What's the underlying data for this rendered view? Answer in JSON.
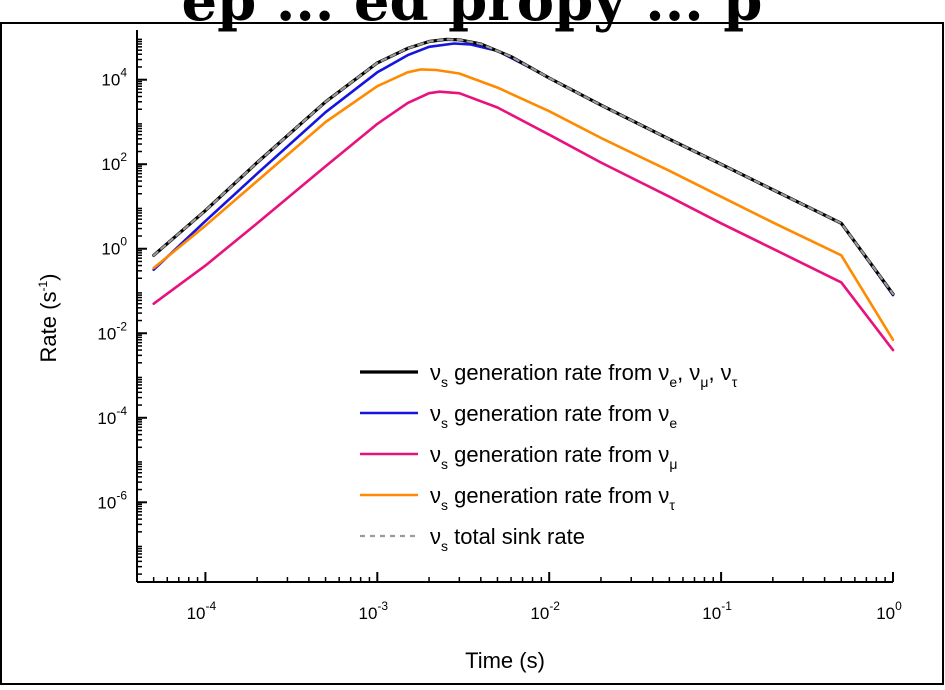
{
  "page": {
    "title_fragment": "ep ... ed propy ... p"
  },
  "chart_data": {
    "type": "line",
    "xscale": "log",
    "yscale": "log",
    "xlabel": "Time (s)",
    "ylabel_main": "Rate (s",
    "ylabel_sup": "-1",
    "ylabel_close": ")",
    "xlim": [
      4e-05,
      1.0
    ],
    "ylim": [
      1.3e-08,
      150000.0
    ],
    "x_ticks": [
      {
        "value": 0.0001,
        "base": "10",
        "exp": "-4"
      },
      {
        "value": 0.001,
        "base": "10",
        "exp": "-3"
      },
      {
        "value": 0.01,
        "base": "10",
        "exp": "-2"
      },
      {
        "value": 0.1,
        "base": "10",
        "exp": "-1"
      },
      {
        "value": 1.0,
        "base": "10",
        "exp": "0"
      }
    ],
    "y_ticks": [
      {
        "value": 1e-06,
        "base": "10",
        "exp": "-6"
      },
      {
        "value": 0.0001,
        "base": "10",
        "exp": "-4"
      },
      {
        "value": 0.01,
        "base": "10",
        "exp": "-2"
      },
      {
        "value": 1.0,
        "base": "10",
        "exp": "0"
      },
      {
        "value": 100.0,
        "base": "10",
        "exp": "2"
      },
      {
        "value": 10000.0,
        "base": "10",
        "exp": "4"
      }
    ],
    "grid": false,
    "legend_position": "bottom-right",
    "series": [
      {
        "key": "total-gen",
        "color": "#000000",
        "dash": "none",
        "width": 3.2,
        "legend": [
          {
            "t": "ν",
            "s": "s"
          },
          {
            "t": " generation rate from ν"
          },
          {
            "t": "",
            "s": "e"
          },
          {
            "t": ", ν"
          },
          {
            "t": "",
            "s": "μ"
          },
          {
            "t": ", ν"
          },
          {
            "t": "",
            "s": "τ"
          }
        ],
        "points": [
          [
            5e-05,
            0.7
          ],
          [
            0.0001,
            8.0
          ],
          [
            0.0002,
            110.0
          ],
          [
            0.0005,
            3000.0
          ],
          [
            0.001,
            25000.0
          ],
          [
            0.0015,
            55000.0
          ],
          [
            0.002,
            80000.0
          ],
          [
            0.0025,
            90000.0
          ],
          [
            0.003,
            88000.0
          ],
          [
            0.004,
            70000.0
          ],
          [
            0.006,
            35000.0
          ],
          [
            0.01,
            11000.0
          ],
          [
            0.02,
            2500.0
          ],
          [
            0.05,
            390.0
          ],
          [
            0.1,
            100.0
          ],
          [
            0.2,
            25.0
          ],
          [
            0.5,
            4.0
          ],
          [
            1.0,
            0.085
          ]
        ]
      },
      {
        "key": "gen-e",
        "color": "#1515e0",
        "dash": "none",
        "width": 2.6,
        "legend": [
          {
            "t": "ν",
            "s": "s"
          },
          {
            "t": " generation rate from ν"
          },
          {
            "t": "",
            "s": "e"
          }
        ],
        "points": [
          [
            5e-05,
            0.32
          ],
          [
            0.0001,
            4.5
          ],
          [
            0.0002,
            60.0
          ],
          [
            0.0005,
            1700.0
          ],
          [
            0.001,
            15000.0
          ],
          [
            0.0015,
            38000.0
          ],
          [
            0.002,
            60000.0
          ],
          [
            0.0028,
            72000.0
          ],
          [
            0.0035,
            68000.0
          ],
          [
            0.005,
            48000.0
          ],
          [
            0.008,
            18000.0
          ],
          [
            0.01,
            11000.0
          ],
          [
            0.02,
            2500.0
          ],
          [
            0.05,
            390.0
          ],
          [
            0.1,
            100.0
          ],
          [
            0.2,
            25.0
          ],
          [
            0.5,
            4.0
          ],
          [
            1.0,
            0.08
          ]
        ]
      },
      {
        "key": "gen-mu",
        "color": "#e8127e",
        "dash": "none",
        "width": 2.6,
        "legend": [
          {
            "t": "ν",
            "s": "s"
          },
          {
            "t": " generation rate from ν"
          },
          {
            "t": "",
            "s": "μ"
          }
        ],
        "points": [
          [
            5e-05,
            0.05
          ],
          [
            0.0001,
            0.4
          ],
          [
            0.0002,
            4.0
          ],
          [
            0.0005,
            90.0
          ],
          [
            0.001,
            900.0
          ],
          [
            0.0015,
            2800.0
          ],
          [
            0.002,
            4800.0
          ],
          [
            0.0023,
            5200.0
          ],
          [
            0.003,
            4800.0
          ],
          [
            0.005,
            2200.0
          ],
          [
            0.01,
            500.0
          ],
          [
            0.02,
            110.0
          ],
          [
            0.05,
            17.0
          ],
          [
            0.1,
            4.0
          ],
          [
            0.2,
            1.0
          ],
          [
            0.5,
            0.16
          ],
          [
            1.0,
            0.004
          ]
        ]
      },
      {
        "key": "gen-tau",
        "color": "#ff8a00",
        "dash": "none",
        "width": 2.6,
        "legend": [
          {
            "t": "ν",
            "s": "s"
          },
          {
            "t": " generation rate from ν"
          },
          {
            "t": "",
            "s": "τ"
          }
        ],
        "points": [
          [
            5e-05,
            0.35
          ],
          [
            0.0001,
            3.5
          ],
          [
            0.0002,
            40.0
          ],
          [
            0.0005,
            1000.0
          ],
          [
            0.001,
            7000.0
          ],
          [
            0.0015,
            15000.0
          ],
          [
            0.0018,
            17500.0
          ],
          [
            0.0022,
            17000.0
          ],
          [
            0.003,
            14000.0
          ],
          [
            0.005,
            6500.0
          ],
          [
            0.01,
            1800.0
          ],
          [
            0.02,
            420.0
          ],
          [
            0.05,
            70.0
          ],
          [
            0.1,
            17.0
          ],
          [
            0.2,
            4.2
          ],
          [
            0.5,
            0.7
          ],
          [
            1.0,
            0.007
          ]
        ]
      },
      {
        "key": "total-sink",
        "color": "#9a9a9a",
        "dash": "5,5",
        "width": 2.2,
        "legend": [
          {
            "t": "ν",
            "s": "s"
          },
          {
            "t": " total sink rate"
          }
        ],
        "points": [
          [
            5e-05,
            0.7
          ],
          [
            0.0001,
            8.0
          ],
          [
            0.0002,
            110.0
          ],
          [
            0.0005,
            3000.0
          ],
          [
            0.001,
            25000.0
          ],
          [
            0.0015,
            55000.0
          ],
          [
            0.002,
            80000.0
          ],
          [
            0.0025,
            90000.0
          ],
          [
            0.003,
            88000.0
          ],
          [
            0.004,
            70000.0
          ],
          [
            0.006,
            35000.0
          ],
          [
            0.01,
            11000.0
          ],
          [
            0.02,
            2500.0
          ],
          [
            0.05,
            390.0
          ],
          [
            0.1,
            100.0
          ],
          [
            0.2,
            25.0
          ],
          [
            0.5,
            4.0
          ],
          [
            1.0,
            0.085
          ]
        ]
      }
    ]
  }
}
